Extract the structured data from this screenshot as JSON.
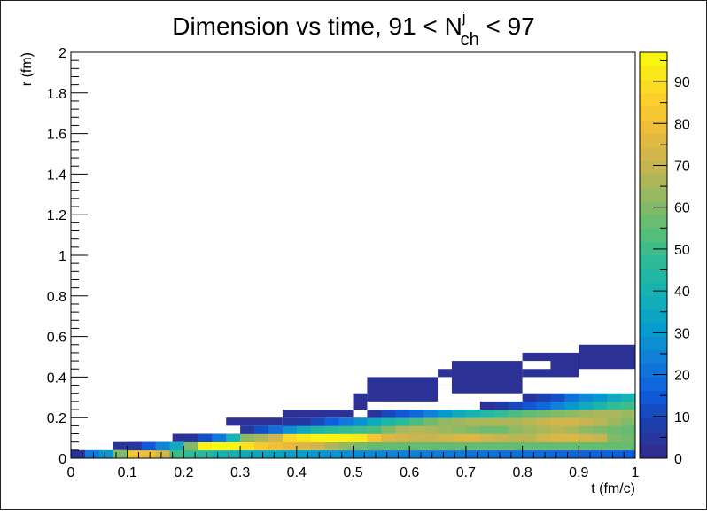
{
  "chart_data": {
    "type": "heatmap",
    "title": {
      "main": "Dimension vs time, 91 < N",
      "sup": "j",
      "sub": "ch",
      "tail": " < 97"
    },
    "xlabel": "t (fm/c)",
    "ylabel": "r (fm)",
    "xlim": [
      0,
      1
    ],
    "ylim": [
      0,
      2
    ],
    "x_ticks": [
      "0",
      "0.1",
      "0.2",
      "0.3",
      "0.4",
      "0.5",
      "0.6",
      "0.7",
      "0.8",
      "0.9",
      "1"
    ],
    "y_ticks": [
      "0",
      "0.2",
      "0.4",
      "0.6",
      "0.8",
      "1",
      "1.2",
      "1.4",
      "1.6",
      "1.8",
      "2"
    ],
    "z_range": [
      0,
      97
    ],
    "z_ticks": [
      "0",
      "10",
      "20",
      "30",
      "40",
      "50",
      "60",
      "70",
      "80",
      "90"
    ],
    "colormap": "parula",
    "grid": false,
    "legend": "colorbar-right",
    "bin_width_x": 0.025,
    "bin_width_y": 0.04,
    "y_bins": [
      0.0,
      0.04,
      0.08,
      0.12,
      0.16,
      0.2,
      0.24,
      0.28,
      0.32,
      0.36,
      0.4,
      0.44,
      0.48,
      0.52
    ],
    "x_bins": [
      0.0,
      0.025,
      0.05,
      0.075,
      0.1,
      0.125,
      0.15,
      0.175,
      0.2,
      0.225,
      0.25,
      0.275,
      0.3,
      0.325,
      0.35,
      0.375,
      0.4,
      0.425,
      0.45,
      0.475,
      0.5,
      0.525,
      0.55,
      0.575,
      0.6,
      0.625,
      0.65,
      0.675,
      0.7,
      0.725,
      0.75,
      0.775,
      0.8,
      0.825,
      0.85,
      0.875,
      0.9,
      0.925,
      0.95,
      0.975
    ],
    "z": [
      [
        4,
        22,
        30,
        60,
        82,
        80,
        72,
        50,
        48,
        45,
        40,
        38,
        36,
        35,
        34,
        33,
        32,
        30,
        29,
        28,
        27,
        26,
        25,
        24,
        24,
        23,
        22,
        22,
        21,
        21,
        20,
        20,
        19,
        19,
        18,
        18,
        17,
        17,
        16,
        16
      ],
      [
        0,
        0,
        0,
        0,
        5,
        15,
        25,
        36,
        60,
        94,
        97,
        95,
        90,
        84,
        80,
        77,
        74,
        72,
        66,
        62,
        58,
        56,
        56,
        56,
        56,
        56,
        56,
        56,
        56,
        56,
        56,
        56,
        56,
        56,
        56,
        56,
        56,
        56,
        56,
        56
      ],
      [
        0,
        0,
        0,
        0,
        0,
        0,
        0,
        0,
        4,
        12,
        22,
        40,
        62,
        66,
        72,
        88,
        92,
        95,
        95,
        94,
        92,
        82,
        74,
        72,
        70,
        70,
        72,
        74,
        75,
        72,
        70,
        68,
        68,
        72,
        74,
        74,
        72,
        70,
        60,
        58
      ],
      [
        0,
        0,
        0,
        0,
        0,
        0,
        0,
        0,
        0,
        0,
        0,
        0,
        5,
        12,
        20,
        28,
        36,
        42,
        46,
        48,
        50,
        52,
        60,
        66,
        68,
        66,
        64,
        62,
        60,
        58,
        58,
        62,
        64,
        66,
        68,
        66,
        62,
        60,
        58,
        56
      ],
      [
        0,
        0,
        0,
        0,
        0,
        0,
        0,
        0,
        0,
        0,
        0,
        0,
        0,
        0,
        0,
        5,
        6,
        10,
        16,
        22,
        28,
        36,
        42,
        46,
        52,
        58,
        62,
        64,
        66,
        66,
        66,
        66,
        68,
        70,
        72,
        72,
        70,
        68,
        64,
        60
      ],
      [
        0,
        0,
        0,
        0,
        0,
        0,
        0,
        0,
        0,
        0,
        0,
        0,
        0,
        0,
        0,
        0,
        0,
        0,
        0,
        0,
        0,
        4,
        10,
        14,
        18,
        24,
        30,
        36,
        40,
        44,
        48,
        52,
        56,
        58,
        60,
        62,
        64,
        66,
        66,
        64
      ],
      [
        0,
        0,
        0,
        0,
        0,
        0,
        0,
        0,
        0,
        0,
        0,
        0,
        0,
        0,
        0,
        0,
        0,
        0,
        0,
        0,
        0,
        0,
        0,
        0,
        0,
        0,
        0,
        0,
        0,
        2,
        6,
        10,
        14,
        18,
        24,
        30,
        36,
        42,
        48,
        50
      ],
      [
        0,
        0,
        0,
        0,
        0,
        0,
        0,
        0,
        0,
        0,
        0,
        0,
        0,
        0,
        0,
        0,
        0,
        0,
        0,
        0,
        0,
        0,
        0,
        0,
        0,
        0,
        0,
        0,
        0,
        0,
        0,
        0,
        4,
        8,
        12,
        20,
        26,
        30,
        36,
        40
      ],
      [
        0,
        0,
        0,
        0,
        0,
        0,
        0,
        0,
        0,
        0,
        0,
        0,
        0,
        0,
        0,
        0,
        0,
        0,
        0,
        0,
        0,
        0,
        0,
        0,
        0,
        0,
        0,
        0,
        0,
        0,
        0,
        0,
        0,
        0,
        0,
        0,
        0,
        0,
        0,
        0
      ],
      [
        0,
        0,
        0,
        0,
        0,
        0,
        0,
        0,
        0,
        0,
        0,
        0,
        0,
        0,
        0,
        0,
        0,
        0,
        0,
        0,
        0,
        0,
        0,
        0,
        0,
        0,
        0,
        0,
        0,
        0,
        0,
        0,
        0,
        0,
        0,
        0,
        0,
        0,
        0,
        0
      ],
      [
        0,
        0,
        0,
        0,
        0,
        0,
        0,
        0,
        0,
        0,
        0,
        0,
        0,
        0,
        0,
        0,
        0,
        0,
        0,
        0,
        0,
        0,
        0,
        0,
        0,
        0,
        0,
        0,
        0,
        0,
        0,
        0,
        0,
        0,
        0,
        0,
        0,
        0,
        0,
        0
      ],
      [
        0,
        0,
        0,
        0,
        0,
        0,
        0,
        0,
        0,
        0,
        0,
        0,
        0,
        0,
        0,
        0,
        0,
        0,
        0,
        0,
        0,
        0,
        0,
        0,
        0,
        0,
        0,
        0,
        0,
        0,
        0,
        0,
        0,
        0,
        0,
        0,
        0,
        0,
        0,
        0
      ],
      [
        0,
        0,
        0,
        0,
        0,
        0,
        0,
        0,
        0,
        0,
        0,
        0,
        0,
        0,
        0,
        0,
        0,
        0,
        0,
        0,
        0,
        0,
        0,
        0,
        0,
        0,
        0,
        0,
        0,
        0,
        0,
        0,
        0,
        0,
        0,
        0,
        0,
        0,
        0,
        0
      ],
      [
        0,
        0,
        0,
        0,
        0,
        0,
        0,
        0,
        0,
        0,
        0,
        0,
        0,
        0,
        0,
        0,
        0,
        0,
        0,
        0,
        0,
        0,
        0,
        0,
        0,
        0,
        0,
        0,
        0,
        0,
        0,
        0,
        0,
        0,
        0,
        0,
        0,
        0,
        0,
        0
      ]
    ],
    "z_filled_low": [
      [
        1,
        1,
        1,
        1,
        1,
        1,
        1,
        1,
        1,
        1,
        1,
        1,
        1,
        1,
        1,
        1,
        1,
        1,
        1,
        1,
        1,
        1,
        1,
        1,
        1,
        1,
        1,
        1,
        1,
        1,
        1,
        1,
        1,
        1,
        1,
        1,
        1,
        1,
        1,
        1
      ],
      [
        0,
        0,
        0,
        0,
        1,
        1,
        1,
        1,
        1,
        1,
        1,
        1,
        1,
        1,
        1,
        1,
        1,
        1,
        1,
        1,
        1,
        1,
        1,
        1,
        1,
        1,
        1,
        1,
        1,
        1,
        1,
        1,
        1,
        1,
        1,
        1,
        1,
        1,
        1,
        1
      ],
      [
        0,
        0,
        0,
        0,
        0,
        0,
        0,
        0,
        1,
        1,
        1,
        1,
        1,
        1,
        1,
        1,
        1,
        1,
        1,
        1,
        1,
        1,
        1,
        1,
        1,
        1,
        1,
        1,
        1,
        1,
        1,
        1,
        1,
        1,
        1,
        1,
        1,
        1,
        1,
        1
      ],
      [
        0,
        0,
        0,
        0,
        0,
        0,
        0,
        0,
        0,
        0,
        0,
        0,
        1,
        1,
        1,
        1,
        1,
        1,
        1,
        1,
        1,
        1,
        1,
        1,
        1,
        1,
        1,
        1,
        1,
        1,
        1,
        1,
        1,
        1,
        1,
        1,
        1,
        1,
        1,
        1
      ],
      [
        0,
        0,
        0,
        0,
        0,
        0,
        0,
        0,
        0,
        0,
        0,
        0,
        0,
        0,
        0,
        1,
        1,
        1,
        1,
        1,
        1,
        1,
        1,
        1,
        1,
        1,
        1,
        1,
        1,
        1,
        1,
        1,
        1,
        1,
        1,
        1,
        1,
        1,
        1,
        1
      ],
      [
        0,
        0,
        0,
        0,
        0,
        0,
        0,
        0,
        0,
        0,
        0,
        0,
        0,
        0,
        0,
        0,
        0,
        0,
        0,
        0,
        0,
        1,
        1,
        1,
        1,
        1,
        1,
        1,
        1,
        1,
        1,
        1,
        1,
        1,
        1,
        1,
        1,
        1,
        1,
        1
      ],
      [
        0,
        0,
        0,
        0,
        0,
        0,
        0,
        0,
        0,
        0,
        0,
        0,
        0,
        0,
        0,
        0,
        0,
        0,
        0,
        0,
        0,
        0,
        0,
        0,
        0,
        0,
        0,
        0,
        0,
        1,
        1,
        1,
        1,
        1,
        1,
        1,
        1,
        1,
        1,
        1
      ],
      [
        0,
        0,
        0,
        0,
        0,
        0,
        0,
        0,
        0,
        0,
        0,
        0,
        0,
        0,
        0,
        0,
        0,
        0,
        0,
        0,
        0,
        0,
        0,
        0,
        0,
        0,
        0,
        0,
        0,
        0,
        0,
        0,
        1,
        1,
        1,
        1,
        1,
        1,
        1,
        1
      ],
      [
        0,
        0,
        0,
        0,
        0,
        0,
        0,
        0,
        0,
        0,
        0,
        0,
        0,
        0,
        0,
        0,
        0,
        0,
        0,
        0,
        0,
        0,
        0,
        0,
        0,
        0,
        0,
        0,
        0,
        0,
        0,
        0,
        0,
        0,
        0,
        0,
        0,
        0,
        0,
        0
      ],
      [
        0,
        0,
        0,
        0,
        0,
        0,
        0,
        0,
        0,
        0,
        0,
        0,
        0,
        0,
        0,
        0,
        0,
        0,
        0,
        0,
        0,
        0,
        0,
        0,
        0,
        0,
        0,
        0,
        0,
        0,
        0,
        0,
        0,
        0,
        0,
        0,
        0,
        0,
        0,
        0
      ],
      [
        0,
        0,
        0,
        0,
        0,
        0,
        0,
        0,
        0,
        0,
        0,
        0,
        0,
        0,
        0,
        0,
        0,
        0,
        0,
        0,
        0,
        0,
        0,
        0,
        0,
        0,
        0,
        0,
        0,
        0,
        0,
        0,
        0,
        0,
        0,
        0,
        0,
        0,
        0,
        0
      ],
      [
        0,
        0,
        0,
        0,
        0,
        0,
        0,
        0,
        0,
        0,
        0,
        0,
        0,
        0,
        0,
        0,
        0,
        0,
        0,
        0,
        0,
        0,
        0,
        0,
        0,
        0,
        0,
        0,
        0,
        0,
        0,
        0,
        0,
        0,
        0,
        0,
        0,
        0,
        0,
        0
      ],
      [
        0,
        0,
        0,
        0,
        0,
        0,
        0,
        0,
        0,
        0,
        0,
        0,
        0,
        0,
        0,
        0,
        0,
        0,
        0,
        0,
        0,
        0,
        0,
        0,
        0,
        0,
        0,
        0,
        0,
        0,
        0,
        0,
        0,
        0,
        0,
        0,
        0,
        0,
        0,
        0
      ],
      [
        0,
        0,
        0,
        0,
        0,
        0,
        0,
        0,
        0,
        0,
        0,
        0,
        0,
        0,
        0,
        0,
        0,
        0,
        0,
        0,
        0,
        0,
        0,
        0,
        0,
        0,
        0,
        0,
        0,
        0,
        0,
        0,
        0,
        0,
        0,
        0,
        0,
        0,
        0,
        0
      ]
    ],
    "outline_bins": [
      {
        "x0": 0.18,
        "x1": 0.275,
        "y0": 0.08,
        "y1": 0.12,
        "z": 3
      },
      {
        "x0": 0.275,
        "x1": 0.375,
        "y0": 0.16,
        "y1": 0.2,
        "z": 3
      },
      {
        "x0": 0.375,
        "x1": 0.5,
        "y0": 0.2,
        "y1": 0.24,
        "z": 3
      },
      {
        "x0": 0.5,
        "x1": 0.525,
        "y0": 0.24,
        "y1": 0.32,
        "z": 3
      },
      {
        "x0": 0.525,
        "x1": 0.65,
        "y0": 0.28,
        "y1": 0.4,
        "z": 3
      },
      {
        "x0": 0.65,
        "x1": 0.675,
        "y0": 0.36,
        "y1": 0.44,
        "z": 3
      },
      {
        "x0": 0.675,
        "x1": 0.8,
        "y0": 0.32,
        "y1": 0.48,
        "z": 3
      },
      {
        "x0": 0.8,
        "x1": 0.9,
        "y0": 0.4,
        "y1": 0.52,
        "z": 3
      },
      {
        "x0": 0.9,
        "x1": 1.0,
        "y0": 0.44,
        "y1": 0.56,
        "z": 3
      },
      {
        "x0": 0.125,
        "x1": 0.18,
        "y0": 0.04,
        "y1": 0.08,
        "z": 3
      },
      {
        "x0": 0.075,
        "x1": 0.125,
        "y0": 0.04,
        "y1": 0.08,
        "z": 4
      }
    ],
    "holes": [
      {
        "x0": 0.65,
        "x1": 0.675,
        "y0": 0.36,
        "y1": 0.4
      },
      {
        "x0": 0.8,
        "x1": 0.85,
        "y0": 0.44,
        "y1": 0.48
      }
    ]
  }
}
